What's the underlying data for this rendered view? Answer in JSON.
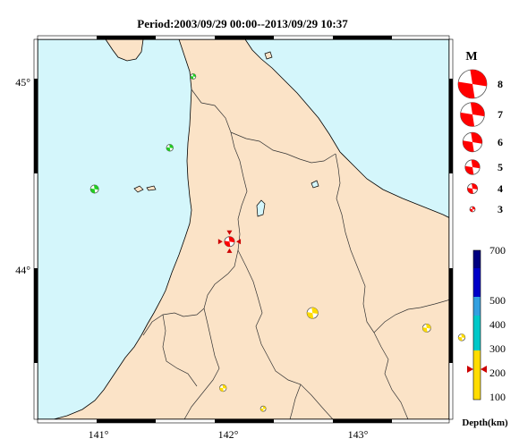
{
  "title": "Period:2003/09/29 00:00--2013/09/29 10:37",
  "axes": {
    "longitude_labels": [
      "141°",
      "142°",
      "143°"
    ],
    "latitude_labels": [
      "45°",
      "44°"
    ]
  },
  "colors": {
    "sea": "#d4f6fb",
    "land": "#fbe3c7",
    "boundary": "#000000",
    "shallow": "#ffdc00",
    "mid": "#00c8c8",
    "main_event": "#ff0000",
    "green_event": "#22cc22"
  },
  "magnitude_legend": {
    "title": "M",
    "entries": [
      "8",
      "7",
      "6",
      "5",
      "4",
      "3"
    ]
  },
  "depth_scale": {
    "ticks": [
      "700",
      "500",
      "400",
      "300",
      "200",
      "100"
    ],
    "label": "Depth(km)",
    "colors": [
      "#ffdc00",
      "#00c8c8",
      "#33a0e0",
      "#0000c8",
      "#000080"
    ],
    "marker_depth": 210
  },
  "events": [
    {
      "name": "main-event",
      "lon": 142.01,
      "lat": 44.17,
      "mag": 4.0,
      "color": "#ff0000",
      "arrows": true
    },
    {
      "name": "event-green-1",
      "lon": 141.73,
      "lat": 45.05,
      "mag": 3.0,
      "color": "#22cc22"
    },
    {
      "name": "event-green-2",
      "lon": 141.55,
      "lat": 44.67,
      "mag": 3.3,
      "color": "#22cc22"
    },
    {
      "name": "event-green-3",
      "lon": 140.97,
      "lat": 44.45,
      "mag": 3.6,
      "color": "#22cc22"
    },
    {
      "name": "event-yellow-1",
      "lon": 142.65,
      "lat": 43.79,
      "mag": 4.2,
      "color": "#ffdc00"
    },
    {
      "name": "event-yellow-2",
      "lon": 143.53,
      "lat": 43.71,
      "mag": 3.6,
      "color": "#ffdc00"
    },
    {
      "name": "event-yellow-3",
      "lon": 143.8,
      "lat": 43.66,
      "mag": 3.3,
      "color": "#ffdc00"
    },
    {
      "name": "event-yellow-4",
      "lon": 141.96,
      "lat": 43.39,
      "mag": 3.3,
      "color": "#ffdc00"
    },
    {
      "name": "event-yellow-5",
      "lon": 142.27,
      "lat": 43.28,
      "mag": 3.0,
      "color": "#ffdc00"
    }
  ]
}
